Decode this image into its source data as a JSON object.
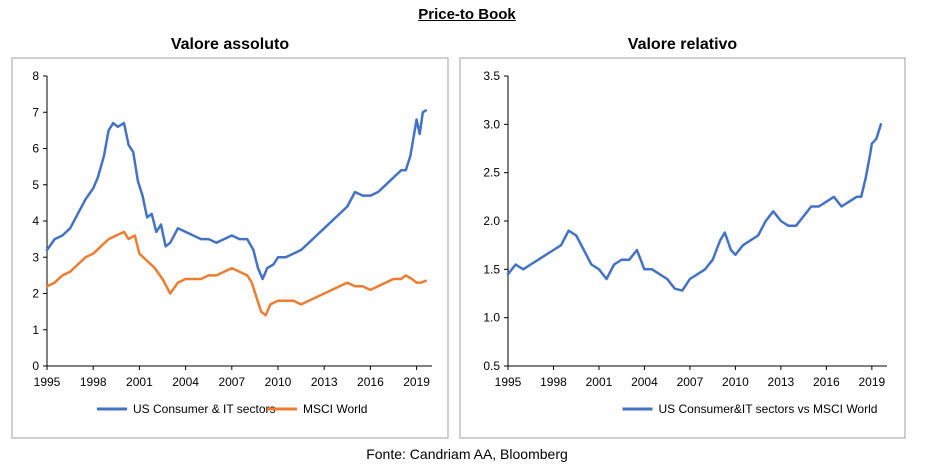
{
  "title": "Price-to Book",
  "source": "Fonte: Candriam AA, Bloomberg",
  "chart_data": [
    {
      "type": "line",
      "title": "Valore assoluto",
      "ylim": [
        0,
        8
      ],
      "yticks": [
        "0",
        "1",
        "2",
        "3",
        "4",
        "5",
        "6",
        "7",
        "8"
      ],
      "xlim": [
        1995,
        2020
      ],
      "xticks": [
        "1995",
        "1998",
        "2001",
        "2004",
        "2007",
        "2010",
        "2013",
        "2016",
        "2019"
      ],
      "grid": false,
      "legend": "bottom",
      "series": [
        {
          "name": "US Consumer & IT sectors",
          "color": "#4472C4",
          "x": [
            1995,
            1995.5,
            1996,
            1996.5,
            1997,
            1997.5,
            1998,
            1998.3,
            1998.7,
            1999,
            1999.3,
            1999.6,
            2000,
            2000.3,
            2000.6,
            2000.9,
            2001.2,
            2001.5,
            2001.8,
            2002.1,
            2002.4,
            2002.7,
            2003,
            2003.5,
            2004,
            2004.5,
            2005,
            2005.5,
            2006,
            2006.5,
            2007,
            2007.5,
            2008,
            2008.4,
            2008.7,
            2009,
            2009.3,
            2009.7,
            2010,
            2010.5,
            2011,
            2011.5,
            2012,
            2012.5,
            2013,
            2013.5,
            2014,
            2014.5,
            2015,
            2015.5,
            2016,
            2016.5,
            2017,
            2017.5,
            2018,
            2018.3,
            2018.6,
            2018.8,
            2019,
            2019.2,
            2019.4,
            2019.6
          ],
          "values": [
            3.2,
            3.5,
            3.6,
            3.8,
            4.2,
            4.6,
            4.9,
            5.2,
            5.8,
            6.5,
            6.7,
            6.6,
            6.7,
            6.1,
            5.9,
            5.1,
            4.7,
            4.1,
            4.2,
            3.7,
            3.9,
            3.3,
            3.4,
            3.8,
            3.7,
            3.6,
            3.5,
            3.5,
            3.4,
            3.5,
            3.6,
            3.5,
            3.5,
            3.2,
            2.7,
            2.4,
            2.7,
            2.8,
            3.0,
            3.0,
            3.1,
            3.2,
            3.4,
            3.6,
            3.8,
            4.0,
            4.2,
            4.4,
            4.8,
            4.7,
            4.7,
            4.8,
            5.0,
            5.2,
            5.4,
            5.4,
            5.8,
            6.3,
            6.8,
            6.4,
            7.0,
            7.05
          ]
        },
        {
          "name": "MSCI World",
          "color": "#ED7D31",
          "x": [
            1995,
            1995.5,
            1996,
            1996.5,
            1997,
            1997.5,
            1998,
            1998.5,
            1999,
            1999.5,
            2000,
            2000.3,
            2000.7,
            2001,
            2001.5,
            2002,
            2002.5,
            2003,
            2003.5,
            2004,
            2004.5,
            2005,
            2005.5,
            2006,
            2006.5,
            2007,
            2007.5,
            2008,
            2008.3,
            2008.6,
            2008.9,
            2009.2,
            2009.5,
            2010,
            2010.5,
            2011,
            2011.5,
            2012,
            2012.5,
            2013,
            2013.5,
            2014,
            2014.5,
            2015,
            2015.5,
            2016,
            2016.5,
            2017,
            2017.5,
            2018,
            2018.3,
            2018.7,
            2019,
            2019.3,
            2019.6
          ],
          "values": [
            2.2,
            2.3,
            2.5,
            2.6,
            2.8,
            3.0,
            3.1,
            3.3,
            3.5,
            3.6,
            3.7,
            3.5,
            3.6,
            3.1,
            2.9,
            2.7,
            2.4,
            2.0,
            2.3,
            2.4,
            2.4,
            2.4,
            2.5,
            2.5,
            2.6,
            2.7,
            2.6,
            2.5,
            2.3,
            1.9,
            1.5,
            1.4,
            1.7,
            1.8,
            1.8,
            1.8,
            1.7,
            1.8,
            1.9,
            2.0,
            2.1,
            2.2,
            2.3,
            2.2,
            2.2,
            2.1,
            2.2,
            2.3,
            2.4,
            2.4,
            2.5,
            2.4,
            2.3,
            2.3,
            2.35
          ]
        }
      ]
    },
    {
      "type": "line",
      "title": "Valore relativo",
      "ylim": [
        0.5,
        3.5
      ],
      "yticks": [
        "0.5",
        "1.0",
        "1.5",
        "2.0",
        "2.5",
        "3.0",
        "3.5"
      ],
      "xlim": [
        1995,
        2020
      ],
      "xticks": [
        "1995",
        "1998",
        "2001",
        "2004",
        "2007",
        "2010",
        "2013",
        "2016",
        "2019"
      ],
      "grid": false,
      "legend": "bottom",
      "series": [
        {
          "name": "US Consumer&IT sectors vs MSCI World",
          "color": "#4472C4",
          "x": [
            1995,
            1995.5,
            1996,
            1996.5,
            1997,
            1997.5,
            1998,
            1998.5,
            1999,
            1999.5,
            2000,
            2000.5,
            2001,
            2001.5,
            2002,
            2002.5,
            2003,
            2003.5,
            2004,
            2004.5,
            2005,
            2005.5,
            2006,
            2006.5,
            2007,
            2007.5,
            2008,
            2008.5,
            2009,
            2009.3,
            2009.7,
            2010,
            2010.5,
            2011,
            2011.5,
            2012,
            2012.5,
            2013,
            2013.5,
            2014,
            2014.5,
            2015,
            2015.5,
            2016,
            2016.5,
            2017,
            2017.5,
            2018,
            2018.3,
            2018.6,
            2018.9,
            2019,
            2019.3,
            2019.6
          ],
          "values": [
            1.45,
            1.55,
            1.5,
            1.55,
            1.6,
            1.65,
            1.7,
            1.75,
            1.9,
            1.85,
            1.7,
            1.55,
            1.5,
            1.4,
            1.55,
            1.6,
            1.6,
            1.7,
            1.5,
            1.5,
            1.45,
            1.4,
            1.3,
            1.28,
            1.4,
            1.45,
            1.5,
            1.6,
            1.8,
            1.88,
            1.7,
            1.65,
            1.75,
            1.8,
            1.85,
            2.0,
            2.1,
            2.0,
            1.95,
            1.95,
            2.05,
            2.15,
            2.15,
            2.2,
            2.25,
            2.15,
            2.2,
            2.25,
            2.25,
            2.45,
            2.7,
            2.8,
            2.85,
            3.0
          ]
        }
      ]
    }
  ]
}
